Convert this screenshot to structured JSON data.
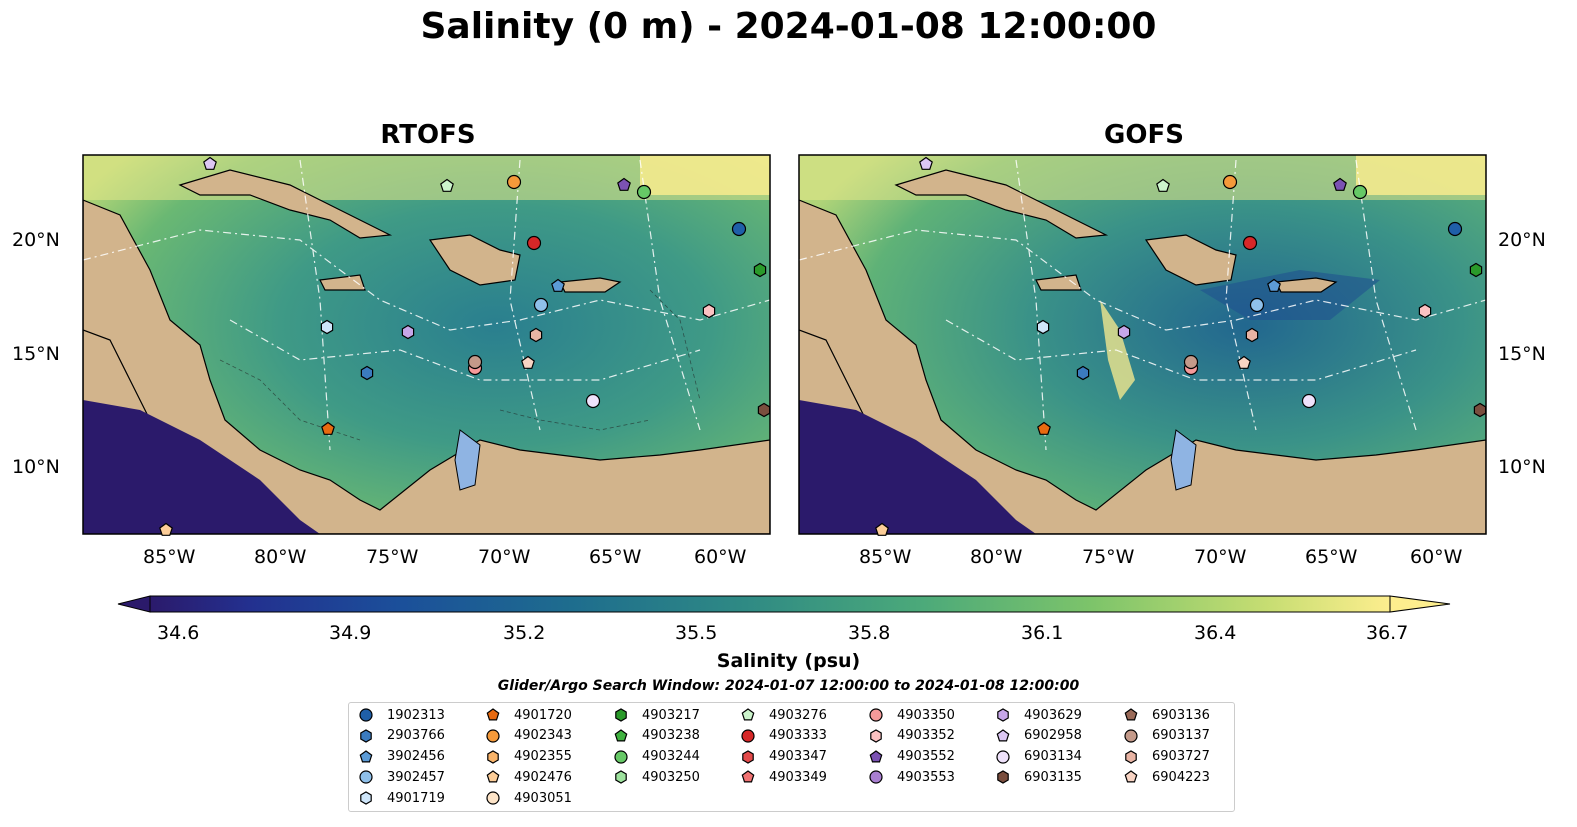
{
  "title": "Salinity (0 m) - 2024-01-08 12:00:00",
  "panels": [
    {
      "title": "RTOFS"
    },
    {
      "title": "GOFS"
    }
  ],
  "axes": {
    "lon_ticks": [
      "85°W",
      "80°W",
      "75°W",
      "70°W",
      "65°W",
      "60°W"
    ],
    "lat_ticks": [
      "20°N",
      "15°N",
      "10°N"
    ]
  },
  "colorbar": {
    "label": "Salinity (psu)",
    "ticks": [
      "34.6",
      "34.9",
      "35.2",
      "35.5",
      "35.8",
      "36.1",
      "36.4",
      "36.7"
    ],
    "range": [
      34.6,
      36.7
    ],
    "colormap": "summer_r/haline-like (dark navy → teal → green → pale yellow)"
  },
  "search_window": "Glider/Argo Search Window: 2024-01-07 12:00:00 to 2024-01-08 12:00:00",
  "legend": {
    "columns": [
      [
        {
          "label": "1902313",
          "marker": "circle",
          "color": "#1f5fa8"
        },
        {
          "label": "2903766",
          "marker": "hexagon",
          "color": "#3b7bbf"
        },
        {
          "label": "3902456",
          "marker": "pentagon",
          "color": "#5c9bd6"
        },
        {
          "label": "3902457",
          "marker": "circle",
          "color": "#8fc0ea"
        },
        {
          "label": "4901719",
          "marker": "hexagon",
          "color": "#cfe6fa"
        }
      ],
      [
        {
          "label": "4901720",
          "marker": "pentagon",
          "color": "#e86a10"
        },
        {
          "label": "4902343",
          "marker": "circle",
          "color": "#f59a3a"
        },
        {
          "label": "4902355",
          "marker": "hexagon",
          "color": "#f9b46a"
        },
        {
          "label": "4902476",
          "marker": "pentagon",
          "color": "#fccd98"
        },
        {
          "label": "4903051",
          "marker": "circle",
          "color": "#fde4c8"
        }
      ],
      [
        {
          "label": "4903217",
          "marker": "hexagon",
          "color": "#2a9a2a"
        },
        {
          "label": "4903238",
          "marker": "pentagon",
          "color": "#3fb13f"
        },
        {
          "label": "4903244",
          "marker": "circle",
          "color": "#66c866"
        },
        {
          "label": "4903250",
          "marker": "hexagon",
          "color": "#9ee29e"
        }
      ],
      [
        {
          "label": "4903276",
          "marker": "pentagon",
          "color": "#ccf5cc"
        },
        {
          "label": "4903333",
          "marker": "circle",
          "color": "#d62728"
        },
        {
          "label": "4903347",
          "marker": "hexagon",
          "color": "#e34a4a"
        },
        {
          "label": "4903349",
          "marker": "pentagon",
          "color": "#f07272"
        }
      ],
      [
        {
          "label": "4903350",
          "marker": "circle",
          "color": "#f59a9a"
        },
        {
          "label": "4903352",
          "marker": "hexagon",
          "color": "#fbc2c2"
        },
        {
          "label": "4903552",
          "marker": "pentagon",
          "color": "#7b52b3"
        },
        {
          "label": "4903553",
          "marker": "circle",
          "color": "#a97fd1"
        }
      ],
      [
        {
          "label": "4903629",
          "marker": "hexagon",
          "color": "#c6a6e8"
        },
        {
          "label": "6902958",
          "marker": "pentagon",
          "color": "#dcc7f3"
        },
        {
          "label": "6903134",
          "marker": "circle",
          "color": "#efe2fb"
        },
        {
          "label": "6903135",
          "marker": "hexagon",
          "color": "#7a4e3e"
        }
      ],
      [
        {
          "label": "6903136",
          "marker": "pentagon",
          "color": "#9a6a58"
        },
        {
          "label": "6903137",
          "marker": "circle",
          "color": "#c49a8a"
        },
        {
          "label": "6903727",
          "marker": "hexagon",
          "color": "#e8b4a4"
        },
        {
          "label": "6904223",
          "marker": "pentagon",
          "color": "#f8d4c4"
        }
      ]
    ]
  },
  "colors": {
    "land": "#d2b48c",
    "lake": "#8fb4e3",
    "ocean_low": "#2b1a6b",
    "ocean_mid": "#3f9a86",
    "ocean_high": "#fdee8e"
  }
}
